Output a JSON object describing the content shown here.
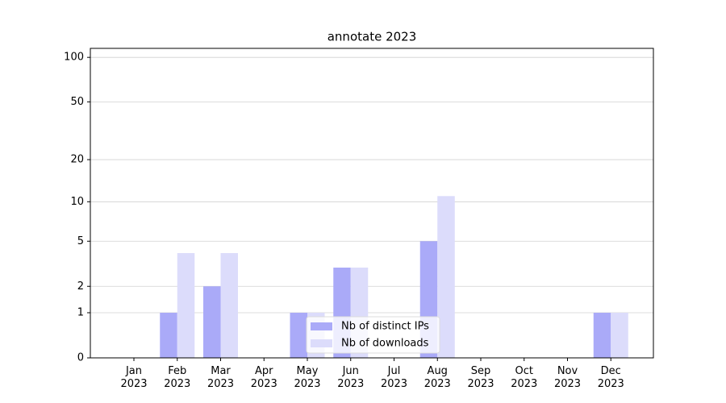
{
  "chart_data": {
    "type": "bar",
    "title": "annotate 2023",
    "categories": [
      "Jan\n2023",
      "Feb\n2023",
      "Mar\n2023",
      "Apr\n2023",
      "May\n2023",
      "Jun\n2023",
      "Jul\n2023",
      "Aug\n2023",
      "Sep\n2023",
      "Oct\n2023",
      "Nov\n2023",
      "Dec\n2023"
    ],
    "series": [
      {
        "name": "Nb of distinct IPs",
        "color": "#aaaaf8",
        "values": [
          0,
          1,
          2,
          0,
          1,
          3,
          0,
          5,
          0,
          0,
          0,
          1
        ]
      },
      {
        "name": "Nb of downloads",
        "color": "#dcdcfb",
        "values": [
          0,
          4,
          4,
          0,
          1,
          3,
          0,
          11,
          0,
          0,
          0,
          1
        ]
      }
    ],
    "yscale": "log1p",
    "ylim": [
      0,
      115
    ],
    "yticks": [
      0,
      1,
      2,
      5,
      10,
      20,
      50,
      100
    ],
    "grid": true,
    "legend": "lower center"
  }
}
